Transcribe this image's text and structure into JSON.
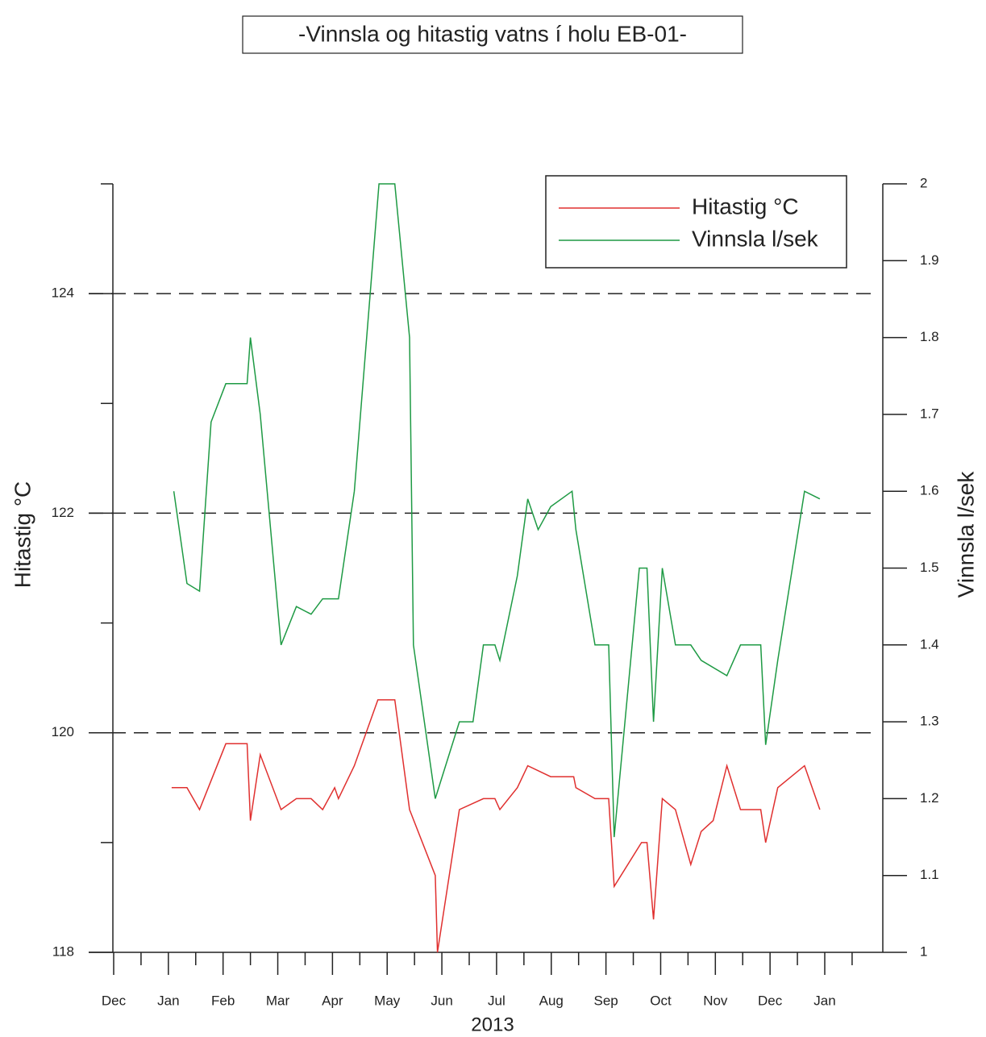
{
  "chart_data": {
    "type": "line",
    "title": "-Vinnsla og hitastig vatns í holu EB-01-",
    "xlabel": "2013",
    "ylabel": "Hitastig °C",
    "y2label": "Vinnsla l/sek",
    "xlim": [
      -1,
      13.05
    ],
    "xticks": [
      {
        "value": -1,
        "label": "Dec"
      },
      {
        "value": 0,
        "label": "Jan"
      },
      {
        "value": 1,
        "label": "Feb"
      },
      {
        "value": 2,
        "label": "Mar"
      },
      {
        "value": 3,
        "label": "Apr"
      },
      {
        "value": 4,
        "label": "May"
      },
      {
        "value": 5,
        "label": "Jun"
      },
      {
        "value": 6,
        "label": "Jul"
      },
      {
        "value": 7,
        "label": "Aug"
      },
      {
        "value": 8,
        "label": "Sep"
      },
      {
        "value": 9,
        "label": "Oct"
      },
      {
        "value": 10,
        "label": "Nov"
      },
      {
        "value": 11,
        "label": "Dec"
      },
      {
        "value": 12,
        "label": "Jan"
      }
    ],
    "xminor_ticks": [
      -0.5,
      0.5,
      1.5,
      2.5,
      3.5,
      4.5,
      5.5,
      6.5,
      7.5,
      8.5,
      9.5,
      10.5,
      11.5,
      12.5
    ],
    "ylim": [
      118,
      125
    ],
    "yticks": [
      118,
      120,
      122,
      124
    ],
    "yminor_ticks": [
      119,
      121,
      123,
      125
    ],
    "y2lim": [
      1,
      2
    ],
    "y2ticks": [
      1,
      1.1,
      1.2,
      1.3,
      1.4,
      1.5,
      1.6,
      1.7,
      1.8,
      1.9,
      2
    ],
    "grid": true,
    "legend": "upper right",
    "series": [
      {
        "name": "Hitastig °C",
        "color": "#e0302f",
        "axis": "y",
        "x": [
          0.06,
          0.34,
          0.57,
          1.05,
          1.44,
          1.5,
          1.68,
          2.06,
          2.34,
          2.61,
          2.82,
          3.04,
          3.11,
          3.4,
          3.83,
          4.14,
          4.41,
          4.88,
          4.92,
          5.32,
          5.76,
          5.97,
          6.06,
          6.38,
          6.57,
          6.99,
          7.41,
          7.45,
          7.8,
          8.05,
          8.15,
          8.65,
          8.75,
          8.87,
          9.03,
          9.27,
          9.55,
          9.74,
          9.96,
          10.21,
          10.46,
          10.83,
          10.92,
          11.14,
          11.63,
          11.91
        ],
        "values": [
          119.5,
          119.5,
          119.3,
          119.9,
          119.9,
          119.2,
          119.8,
          119.3,
          119.4,
          119.4,
          119.3,
          119.5,
          119.4,
          119.7,
          120.3,
          120.3,
          119.3,
          118.7,
          118.0,
          119.3,
          119.4,
          119.4,
          119.3,
          119.5,
          119.7,
          119.6,
          119.6,
          119.5,
          119.4,
          119.4,
          118.6,
          119.0,
          119.0,
          118.3,
          119.4,
          119.3,
          118.8,
          119.1,
          119.2,
          119.7,
          119.3,
          119.3,
          119.0,
          119.5,
          119.7,
          119.3
        ]
      },
      {
        "name": "Vinnsla l/sek",
        "color": "#1e9a44",
        "axis": "y2",
        "x": [
          0.1,
          0.34,
          0.57,
          0.78,
          1.05,
          1.44,
          1.5,
          1.68,
          2.06,
          2.34,
          2.61,
          2.82,
          3.11,
          3.4,
          3.85,
          4.14,
          4.41,
          4.48,
          4.88,
          5.32,
          5.57,
          5.76,
          5.97,
          6.06,
          6.38,
          6.57,
          6.76,
          6.99,
          7.38,
          7.45,
          7.8,
          8.05,
          8.15,
          8.61,
          8.75,
          8.87,
          9.03,
          9.27,
          9.55,
          9.74,
          10.21,
          10.46,
          10.83,
          10.92,
          11.14,
          11.63,
          11.91
        ],
        "values": [
          1.6,
          1.48,
          1.47,
          1.69,
          1.74,
          1.74,
          1.8,
          1.7,
          1.4,
          1.45,
          1.44,
          1.46,
          1.46,
          1.6,
          2.0,
          2.0,
          1.8,
          1.4,
          1.2,
          1.3,
          1.3,
          1.4,
          1.4,
          1.38,
          1.49,
          1.59,
          1.55,
          1.58,
          1.6,
          1.55,
          1.4,
          1.4,
          1.15,
          1.5,
          1.5,
          1.3,
          1.5,
          1.4,
          1.4,
          1.38,
          1.36,
          1.4,
          1.4,
          1.27,
          1.38,
          1.6,
          1.59
        ]
      }
    ]
  }
}
